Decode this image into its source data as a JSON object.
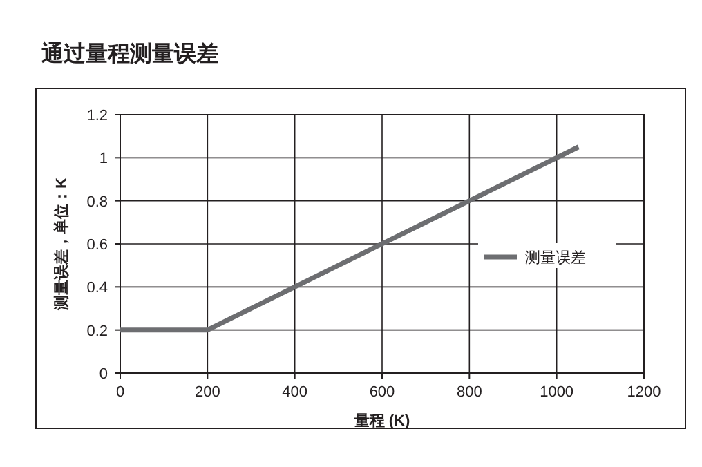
{
  "chart_data": {
    "type": "line",
    "title": "通过量程测量误差",
    "xlabel": "量程 (K)",
    "ylabel": "测量误差，单位：K",
    "x": [
      0,
      200,
      1050
    ],
    "series": [
      {
        "name": "测量误差",
        "color": "#6d6e71",
        "values": [
          0.2,
          0.2,
          1.05
        ]
      }
    ],
    "xlim": [
      0,
      1200
    ],
    "xticks": [
      0,
      200,
      400,
      600,
      800,
      1000,
      1200
    ],
    "ylim": [
      0,
      1.2
    ],
    "yticks": [
      0,
      0.2,
      0.4,
      0.6,
      0.8,
      1,
      1.2
    ],
    "grid": true,
    "legend": "right",
    "marker": "none",
    "line_style": "solid"
  }
}
